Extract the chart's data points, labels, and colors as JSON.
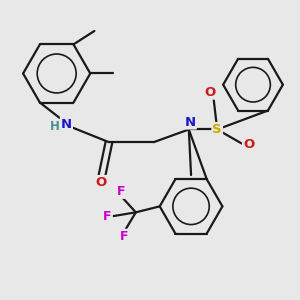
{
  "background_color": "#e8e8e8",
  "bond_color": "#1a1a1a",
  "bond_width": 1.6,
  "colors": {
    "N": "#1a1acc",
    "O": "#cc1a1a",
    "S": "#ccaa00",
    "F": "#cc00cc",
    "H": "#4a9090",
    "C": "#1a1a1a"
  },
  "figsize": [
    3.0,
    3.0
  ],
  "dpi": 100
}
